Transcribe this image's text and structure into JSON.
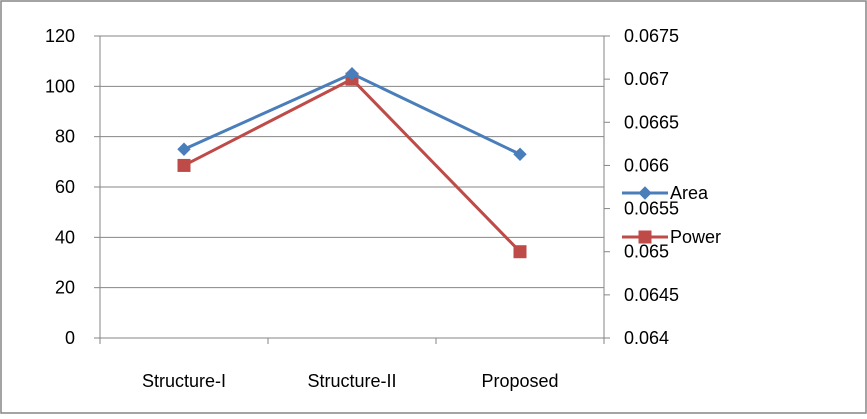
{
  "chart_data": {
    "type": "line",
    "categories": [
      "Structure-I",
      "Structure-II",
      "Proposed"
    ],
    "series": [
      {
        "name": "Area",
        "axis": "left",
        "color": "#4a7ebb",
        "marker": "diamond",
        "values": [
          75,
          105,
          73
        ]
      },
      {
        "name": "Power",
        "axis": "right",
        "color": "#be4b48",
        "marker": "square",
        "values": [
          0.066,
          0.067,
          0.065
        ]
      }
    ],
    "y_left": {
      "min": 0,
      "max": 120,
      "ticks": [
        "0",
        "20",
        "40",
        "60",
        "80",
        "100",
        "120"
      ]
    },
    "y_right": {
      "min": 0.064,
      "max": 0.0675,
      "ticks": [
        "0.064",
        "0.0645",
        "0.065",
        "0.0655",
        "0.066",
        "0.0665",
        "0.067",
        "0.0675"
      ]
    },
    "grid": true,
    "legend_position": "right",
    "title": "",
    "xlabel": "",
    "ylabel": ""
  }
}
